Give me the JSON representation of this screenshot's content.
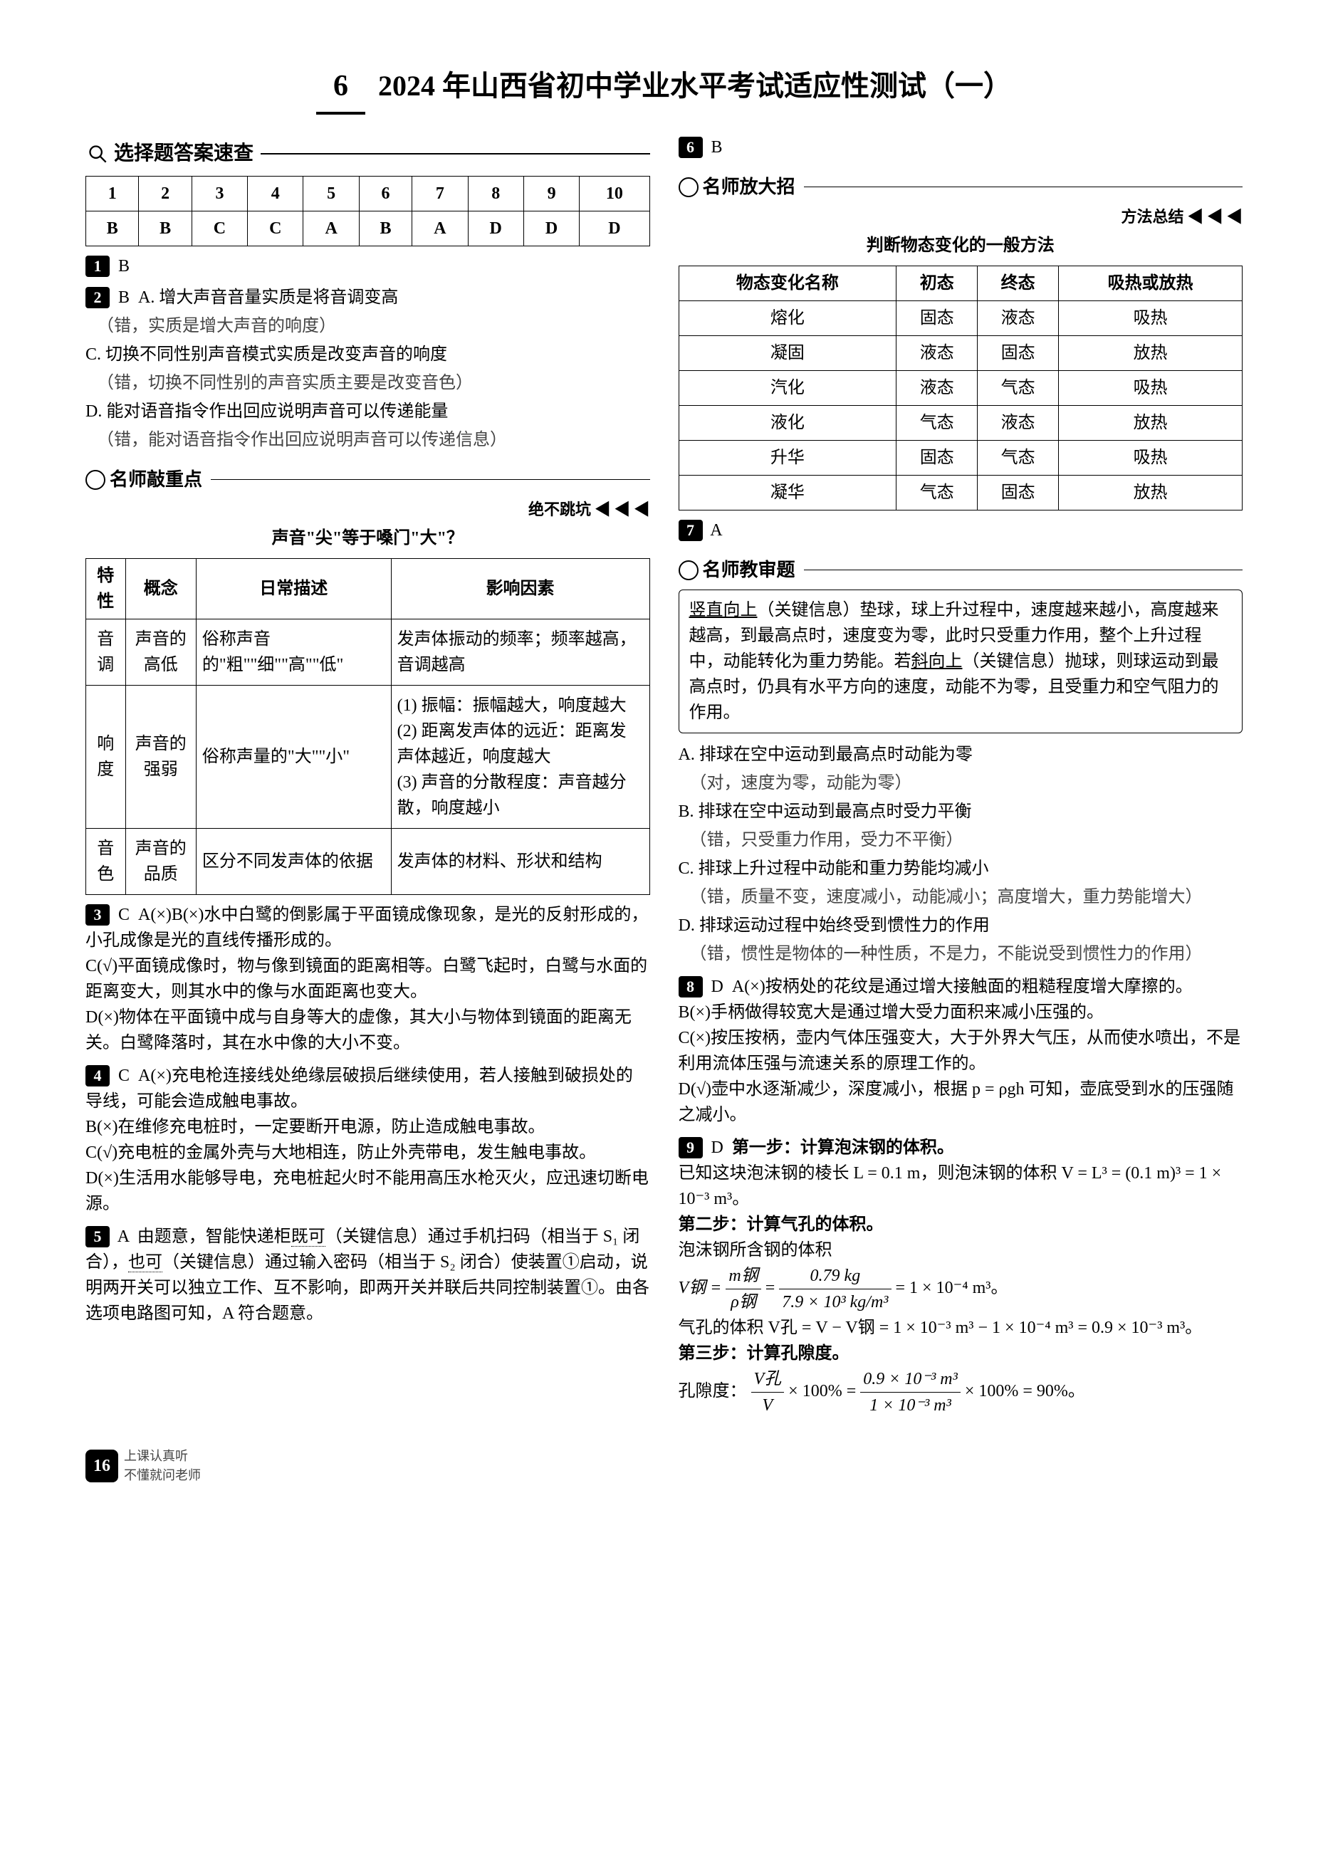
{
  "page_dimensions": [
    1865,
    2604
  ],
  "title": {
    "number": "6",
    "text": "2024 年山西省初中学业水平考试适应性测试（一）"
  },
  "quick_check": {
    "header": "选择题答案速查",
    "nums": [
      "1",
      "2",
      "3",
      "4",
      "5",
      "6",
      "7",
      "8",
      "9",
      "10"
    ],
    "answers": [
      "B",
      "B",
      "C",
      "C",
      "A",
      "B",
      "A",
      "D",
      "D",
      "D"
    ]
  },
  "q1": {
    "num": "1",
    "answer": "B"
  },
  "q2": {
    "num": "2",
    "answer": "B",
    "a": "A. 增大声音音量实质是将音调变高",
    "a_note": "（错，实质是增大声音的响度）",
    "c": "C. 切换不同性别声音模式实质是改变声音的响度",
    "c_note": "（错，切换不同性别的声音实质主要是改变音色）",
    "d": "D. 能对语音指令作出回应说明声音可以传递能量",
    "d_note": "（错，能对语音指令作出回应说明声音可以传递信息）"
  },
  "nszd": {
    "label": "名师敲重点",
    "tag": "绝不跳坑 ◀ ◀ ◀",
    "sub": "声音\"尖\"等于嗓门\"大\"？",
    "headers": [
      "特性",
      "概念",
      "日常描述",
      "影响因素"
    ],
    "rows": [
      [
        "音调",
        "声音的高低",
        "俗称声音的\"粗\"\"细\"\"高\"\"低\"",
        "发声体振动的频率；频率越高，音调越高"
      ],
      [
        "响度",
        "声音的强弱",
        "俗称声量的\"大\"\"小\"",
        "(1) 振幅：振幅越大，响度越大\n(2) 距离发声体的远近：距离发声体越近，响度越大\n(3) 声音的分散程度：声音越分散，响度越小"
      ],
      [
        "音色",
        "声音的品质",
        "区分不同发声体的依据",
        "发声体的材料、形状和结构"
      ]
    ]
  },
  "q3": {
    "num": "3",
    "answer": "C",
    "text": "A(×)B(×)水中白鹭的倒影属于平面镜成像现象，是光的反射形成的，小孔成像是光的直线传播形成的。\nC(√)平面镜成像时，物与像到镜面的距离相等。白鹭飞起时，白鹭与水面的距离变大，则其水中的像与水面距离也变大。\nD(×)物体在平面镜中成与自身等大的虚像，其大小与物体到镜面的距离无关。白鹭降落时，其在水中像的大小不变。"
  },
  "q4": {
    "num": "4",
    "answer": "C",
    "text": "A(×)充电枪连接线处绝缘层破损后继续使用，若人接触到破损处的导线，可能会造成触电事故。\nB(×)在维修充电桩时，一定要断开电源，防止造成触电事故。\nC(√)充电桩的金属外壳与大地相连，防止外壳带电，发生触电事故。\nD(×)生活用水能够导电，充电桩起火时不能用高压水枪灭火，应迅速切断电源。"
  },
  "q5": {
    "num": "5",
    "answer": "A",
    "text": "由题意，智能快递柜既可（关键信息）通过手机扫码（相当于 S₁ 闭合），也可（关键信息）通过输入密码（相当于 S₂ 闭合）使装置①启动，说明两开关可以独立工作、互不影响，即两开关并联后共同控制装置①。由各选项电路图可知，A 符合题意。",
    "dotted1": "既可",
    "dotted2": "也可"
  },
  "q6": {
    "num": "6",
    "answer": "B"
  },
  "nsdz": {
    "label": "名师放大招",
    "tag": "方法总结 ◀ ◀ ◀",
    "sub": "判断物态变化的一般方法",
    "headers": [
      "物态变化名称",
      "初态",
      "终态",
      "吸热或放热"
    ],
    "rows": [
      [
        "熔化",
        "固态",
        "液态",
        "吸热"
      ],
      [
        "凝固",
        "液态",
        "固态",
        "放热"
      ],
      [
        "汽化",
        "液态",
        "气态",
        "吸热"
      ],
      [
        "液化",
        "气态",
        "液态",
        "放热"
      ],
      [
        "升华",
        "固态",
        "气态",
        "吸热"
      ],
      [
        "凝华",
        "气态",
        "固态",
        "放热"
      ]
    ]
  },
  "q7": {
    "num": "7",
    "answer": "A",
    "teacher_label": "名师教审题",
    "box": "竖直向上（关键信息）垫球，球上升过程中，速度越来越小，高度越来越高，到最高点时，速度变为零，此时只受重力作用，整个上升过程中，动能转化为重力势能。若斜向上（关键信息）抛球，则球运动到最高点时，仍具有水平方向的速度，动能不为零，且受重力和空气阻力的作用。",
    "a": "A. 排球在空中运动到最高点时动能为零",
    "a_note": "（对，速度为零，动能为零）",
    "b": "B. 排球在空中运动到最高点时受力平衡",
    "b_note": "（错，只受重力作用，受力不平衡）",
    "c": "C. 排球上升过程中动能和重力势能均减小",
    "c_note": "（错，质量不变，速度减小，动能减小；高度增大，重力势能增大）",
    "d": "D. 排球运动过程中始终受到惯性力的作用",
    "d_note": "（错，惯性是物体的一种性质，不是力，不能说受到惯性力的作用）"
  },
  "q8": {
    "num": "8",
    "answer": "D",
    "lines": [
      "A(×)按柄处的花纹是通过增大接触面的粗糙程度增大摩擦的。",
      "B(×)手柄做得较宽大是通过增大受力面积来减小压强的。",
      "C(×)按压按柄，壶内气体压强变大，大于外界大气压，从而使水喷出，不是利用流体压强与流速关系的原理工作的。",
      "D(√)壶中水逐渐减少，深度减小，根据 p = ρgh 可知，壶底受到水的压强随之减小。"
    ]
  },
  "q9": {
    "num": "9",
    "answer": "D",
    "step1_title": "第一步：计算泡沫钢的体积。",
    "step1_text": "已知这块泡沫钢的棱长 L = 0.1 m，则泡沫钢的体积 V = L³ = (0.1 m)³ = 1 × 10⁻³ m³。",
    "step2_title": "第二步：计算气孔的体积。",
    "step2_text1": "泡沫钢所含钢的体积",
    "step2_formula": {
      "lhs": "V钢 =",
      "frac_n": "m钢",
      "frac_d": "ρ钢",
      "mid": "=",
      "frac2_n": "0.79 kg",
      "frac2_d": "7.9 × 10³ kg/m³",
      "rhs": "= 1 × 10⁻⁴ m³。"
    },
    "step2_text2": "气孔的体积 V孔 = V − V钢 = 1 × 10⁻³ m³ − 1 × 10⁻⁴ m³ = 0.9 × 10⁻³ m³。",
    "step3_title": "第三步：计算孔隙度。",
    "step3_formula": {
      "pre": "孔隙度：",
      "frac_n": "V孔",
      "frac_d": "V",
      "mid1": " × 100% = ",
      "frac2_n": "0.9 × 10⁻³ m³",
      "frac2_d": "1 × 10⁻³ m³",
      "rhs": " × 100% = 90%。"
    }
  },
  "footer": {
    "page": "16",
    "slogan1": "上课认真听",
    "slogan2": "不懂就问老师"
  }
}
